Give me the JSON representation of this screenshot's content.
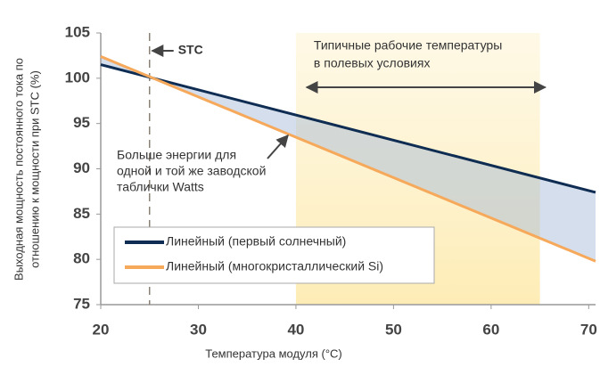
{
  "chart_data": {
    "type": "line",
    "xlabel": "Температура модуля (°C)",
    "ylabel": [
      "Выходная мощность постоянного тока по",
      "отношению к мощности при STC (%)"
    ],
    "x": [
      20,
      70.7
    ],
    "series": [
      {
        "name": "Линейный (первый солнечный)",
        "color": "#0f2d52",
        "values": [
          101.5,
          87.4
        ]
      },
      {
        "name": "Линейный (многокристаллический Si)",
        "color": "#f6a95b",
        "values": [
          102.4,
          79.8
        ]
      }
    ],
    "xlim": [
      20,
      70.7
    ],
    "ylim": [
      75,
      105
    ],
    "xticks": [
      20,
      30,
      40,
      50,
      60,
      70
    ],
    "yticks": [
      75,
      80,
      85,
      90,
      95,
      100,
      105
    ],
    "stc": {
      "x": 25,
      "label": "STC"
    },
    "band": {
      "x": [
        40,
        65
      ],
      "label": [
        "Типичные рабочие температуры",
        "в полевых условиях"
      ]
    },
    "note": [
      "Больше энергии для",
      "одной и той же заводской",
      "таблички Watts"
    ]
  }
}
